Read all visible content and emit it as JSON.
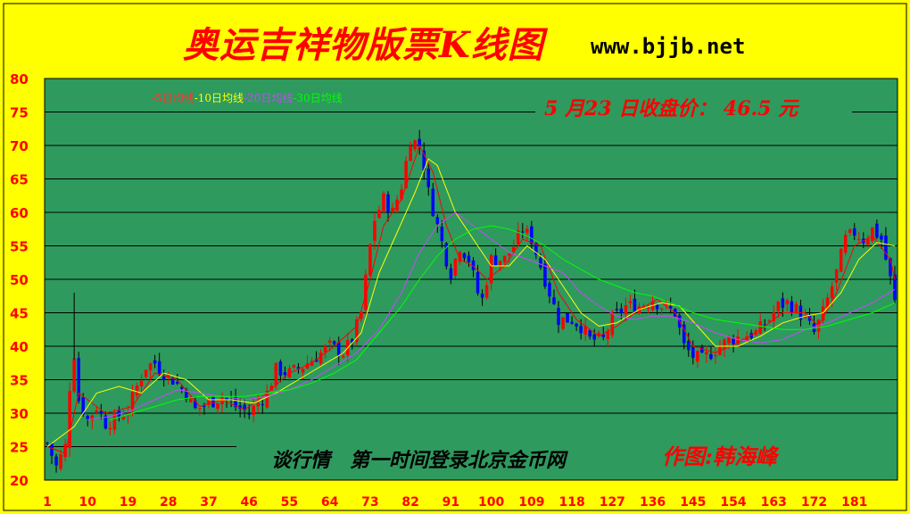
{
  "header": {
    "title": "奥运吉祥物版票K线图",
    "url": "www.bjjb.net"
  },
  "legend": {
    "ma5": "-5日均线",
    "ma10": "-10日均线",
    "ma20": "-20日均线",
    "ma30": "-30日均线"
  },
  "annotations": {
    "close_note": "5 月23 日收盘价： 46.5 元",
    "talk": "谈行情　第一时间登录北京金币网",
    "author": "作图:韩海峰"
  },
  "colors": {
    "background": "#ffff00",
    "plot": "#2e9a5e",
    "up": "#ff0000",
    "down": "#0000ff",
    "ma5": "#ff0000",
    "ma10": "#ffff00",
    "ma20": "#cc44ff",
    "ma30": "#00ff00",
    "axis_text": "#ff0000"
  },
  "chart_data": {
    "type": "candlestick",
    "ylim": [
      20,
      80
    ],
    "yticks": [
      20,
      25,
      30,
      35,
      40,
      45,
      50,
      55,
      60,
      65,
      70,
      75,
      80
    ],
    "xticks": [
      1,
      10,
      19,
      28,
      37,
      46,
      55,
      64,
      73,
      82,
      91,
      100,
      109,
      118,
      127,
      136,
      145,
      154,
      163,
      172,
      181
    ],
    "xrange": [
      1,
      190
    ],
    "last_close": 46.5,
    "series": [
      {
        "name": "-5日均线",
        "type": "ma"
      },
      {
        "name": "-10日均线",
        "type": "ma"
      },
      {
        "name": "-20日均线",
        "type": "ma"
      },
      {
        "name": "-30日均线",
        "type": "ma"
      }
    ],
    "close_path": [
      [
        1,
        25.5
      ],
      [
        3,
        22
      ],
      [
        5,
        25
      ],
      [
        6,
        34
      ],
      [
        7,
        39
      ],
      [
        8,
        32
      ],
      [
        10,
        29
      ],
      [
        12,
        31
      ],
      [
        14,
        28.5
      ],
      [
        16,
        29
      ],
      [
        19,
        30.5
      ],
      [
        21,
        34
      ],
      [
        23,
        37
      ],
      [
        25,
        37.5
      ],
      [
        27,
        36
      ],
      [
        29,
        35
      ],
      [
        32,
        33
      ],
      [
        34,
        30.5
      ],
      [
        37,
        31.5
      ],
      [
        40,
        32.5
      ],
      [
        43,
        31
      ],
      [
        46,
        30
      ],
      [
        48,
        31.5
      ],
      [
        50,
        33
      ],
      [
        52,
        36.5
      ],
      [
        55,
        36
      ],
      [
        58,
        37
      ],
      [
        61,
        38.5
      ],
      [
        64,
        40
      ],
      [
        67,
        39
      ],
      [
        69,
        41
      ],
      [
        71,
        45
      ],
      [
        73,
        55
      ],
      [
        74,
        59
      ],
      [
        76,
        62
      ],
      [
        78,
        60
      ],
      [
        80,
        64
      ],
      [
        82,
        71
      ],
      [
        84,
        70
      ],
      [
        85,
        67
      ],
      [
        86,
        63
      ],
      [
        88,
        58
      ],
      [
        90,
        53
      ],
      [
        91,
        51
      ],
      [
        93,
        55
      ],
      [
        95,
        53
      ],
      [
        97,
        48
      ],
      [
        98,
        47
      ],
      [
        100,
        53
      ],
      [
        103,
        53
      ],
      [
        105,
        55
      ],
      [
        107,
        57.5
      ],
      [
        109,
        56
      ],
      [
        111,
        52
      ],
      [
        113,
        48
      ],
      [
        115,
        44
      ],
      [
        118,
        44
      ],
      [
        120,
        43
      ],
      [
        122,
        41
      ],
      [
        125,
        41
      ],
      [
        127,
        44
      ],
      [
        130,
        46
      ],
      [
        133,
        46
      ],
      [
        136,
        47
      ],
      [
        138,
        46
      ],
      [
        141,
        45
      ],
      [
        143,
        40
      ],
      [
        145,
        38.5
      ],
      [
        147,
        38
      ],
      [
        150,
        39.5
      ],
      [
        153,
        41
      ],
      [
        156,
        41.5
      ],
      [
        159,
        42
      ],
      [
        162,
        44
      ],
      [
        164,
        46
      ],
      [
        166,
        46.5
      ],
      [
        168,
        45.5
      ],
      [
        170,
        44
      ],
      [
        172,
        42
      ],
      [
        174,
        45
      ],
      [
        177,
        51
      ],
      [
        179,
        56
      ],
      [
        181,
        57
      ],
      [
        183,
        56
      ],
      [
        185,
        57.5
      ],
      [
        187,
        56
      ],
      [
        189,
        50
      ],
      [
        190,
        46.5
      ]
    ],
    "ma_paths": {
      "ma5": [
        [
          1,
          25
        ],
        [
          5,
          24
        ],
        [
          8,
          33
        ],
        [
          14,
          30
        ],
        [
          20,
          31
        ],
        [
          25,
          36
        ],
        [
          30,
          35
        ],
        [
          35,
          31
        ],
        [
          40,
          32
        ],
        [
          45,
          30.5
        ],
        [
          50,
          33
        ],
        [
          55,
          36
        ],
        [
          60,
          37.5
        ],
        [
          65,
          40
        ],
        [
          70,
          43
        ],
        [
          73,
          50
        ],
        [
          76,
          58
        ],
        [
          80,
          62
        ],
        [
          84,
          70
        ],
        [
          87,
          66
        ],
        [
          90,
          58
        ],
        [
          93,
          53
        ],
        [
          96,
          52
        ],
        [
          99,
          50
        ],
        [
          103,
          52
        ],
        [
          107,
          56
        ],
        [
          111,
          55
        ],
        [
          115,
          48
        ],
        [
          119,
          44
        ],
        [
          124,
          41.5
        ],
        [
          128,
          43
        ],
        [
          133,
          45.5
        ],
        [
          137,
          47
        ],
        [
          141,
          45
        ],
        [
          145,
          40
        ],
        [
          150,
          39
        ],
        [
          155,
          40.5
        ],
        [
          160,
          42.5
        ],
        [
          165,
          45
        ],
        [
          170,
          45
        ],
        [
          173,
          43
        ],
        [
          177,
          48
        ],
        [
          181,
          55
        ],
        [
          185,
          56.5
        ],
        [
          189,
          53
        ],
        [
          190,
          50
        ]
      ],
      "ma10": [
        [
          1,
          25
        ],
        [
          7,
          28
        ],
        [
          12,
          33
        ],
        [
          17,
          34
        ],
        [
          22,
          33
        ],
        [
          27,
          36
        ],
        [
          32,
          35
        ],
        [
          37,
          32
        ],
        [
          42,
          32
        ],
        [
          47,
          31.5
        ],
        [
          52,
          33
        ],
        [
          57,
          35
        ],
        [
          62,
          37
        ],
        [
          67,
          39
        ],
        [
          71,
          42
        ],
        [
          75,
          51
        ],
        [
          79,
          57
        ],
        [
          83,
          63
        ],
        [
          86,
          68
        ],
        [
          88,
          67
        ],
        [
          92,
          60
        ],
        [
          96,
          56
        ],
        [
          100,
          52
        ],
        [
          104,
          52
        ],
        [
          108,
          55
        ],
        [
          112,
          53
        ],
        [
          116,
          49
        ],
        [
          120,
          45
        ],
        [
          124,
          43
        ],
        [
          128,
          43.5
        ],
        [
          133,
          45.5
        ],
        [
          138,
          46.5
        ],
        [
          142,
          46
        ],
        [
          146,
          43
        ],
        [
          150,
          40
        ],
        [
          155,
          40
        ],
        [
          160,
          41.5
        ],
        [
          165,
          43.5
        ],
        [
          170,
          44.5
        ],
        [
          174,
          45
        ],
        [
          178,
          48
        ],
        [
          182,
          53
        ],
        [
          186,
          55.5
        ],
        [
          190,
          55
        ]
      ],
      "ma20": [
        [
          10,
          29
        ],
        [
          15,
          29.5
        ],
        [
          20,
          30.5
        ],
        [
          25,
          32
        ],
        [
          30,
          33.5
        ],
        [
          35,
          33
        ],
        [
          40,
          32.5
        ],
        [
          45,
          32
        ],
        [
          50,
          32.5
        ],
        [
          55,
          33.5
        ],
        [
          60,
          35
        ],
        [
          65,
          37
        ],
        [
          70,
          39
        ],
        [
          75,
          42.5
        ],
        [
          80,
          48
        ],
        [
          84,
          54
        ],
        [
          88,
          58
        ],
        [
          92,
          60
        ],
        [
          96,
          58
        ],
        [
          100,
          56
        ],
        [
          104,
          54
        ],
        [
          108,
          53
        ],
        [
          112,
          52
        ],
        [
          116,
          51
        ],
        [
          120,
          48
        ],
        [
          124,
          46
        ],
        [
          128,
          44.5
        ],
        [
          132,
          44
        ],
        [
          136,
          44.5
        ],
        [
          140,
          44.5
        ],
        [
          145,
          43.5
        ],
        [
          150,
          42
        ],
        [
          155,
          41
        ],
        [
          160,
          40.5
        ],
        [
          165,
          41
        ],
        [
          170,
          42.5
        ],
        [
          175,
          43.5
        ],
        [
          180,
          45
        ],
        [
          185,
          46.5
        ],
        [
          190,
          48.5
        ]
      ],
      "ma30": [
        [
          15,
          29
        ],
        [
          20,
          30
        ],
        [
          25,
          31
        ],
        [
          30,
          32
        ],
        [
          35,
          32.5
        ],
        [
          40,
          32.5
        ],
        [
          45,
          32.5
        ],
        [
          50,
          33
        ],
        [
          55,
          33.5
        ],
        [
          60,
          34.5
        ],
        [
          65,
          36
        ],
        [
          70,
          38
        ],
        [
          75,
          42
        ],
        [
          80,
          46
        ],
        [
          84,
          50
        ],
        [
          88,
          53.5
        ],
        [
          92,
          56
        ],
        [
          96,
          57.5
        ],
        [
          100,
          58
        ],
        [
          104,
          57.5
        ],
        [
          108,
          56.5
        ],
        [
          112,
          55
        ],
        [
          116,
          53
        ],
        [
          120,
          51.5
        ],
        [
          124,
          50
        ],
        [
          128,
          49
        ],
        [
          132,
          48
        ],
        [
          136,
          47.5
        ],
        [
          140,
          46.5
        ],
        [
          145,
          45
        ],
        [
          150,
          44
        ],
        [
          155,
          43.5
        ],
        [
          160,
          43
        ],
        [
          165,
          42.5
        ],
        [
          170,
          42.5
        ],
        [
          175,
          43
        ],
        [
          180,
          44
        ],
        [
          185,
          45
        ],
        [
          190,
          46.5
        ]
      ]
    }
  }
}
